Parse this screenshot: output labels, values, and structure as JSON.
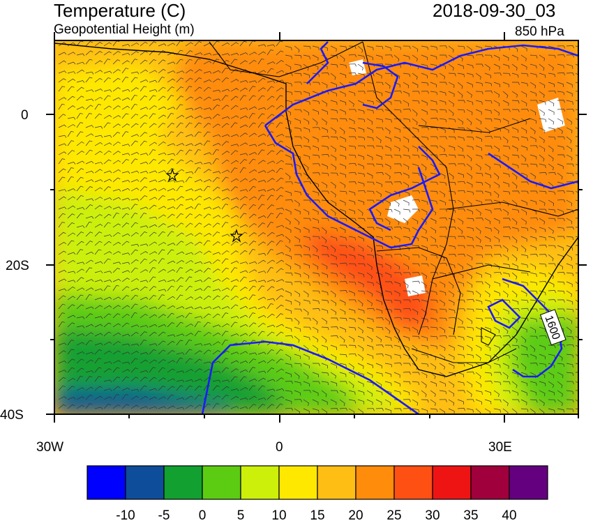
{
  "header": {
    "title": "Temperature (C)",
    "subtitle": "Geopotential Height (m)",
    "datetime": "2018-09-30_03",
    "level": "850 hPa"
  },
  "axes": {
    "y_ticks": [
      "0",
      "20S",
      "40S"
    ],
    "x_ticks": [
      "30W",
      "0",
      "30E"
    ]
  },
  "contour": {
    "label": "1600",
    "color": "#1a1aff"
  },
  "colorbar": {
    "labels": [
      "-10",
      "-5",
      "0",
      "5",
      "10",
      "15",
      "20",
      "25",
      "30",
      "35",
      "40"
    ],
    "colors": [
      "#0000ff",
      "#0e4d9a",
      "#12a030",
      "#5ccc12",
      "#ccf00a",
      "#ffe800",
      "#ffbe14",
      "#ff8c0a",
      "#ff5014",
      "#ee1414",
      "#a0003c",
      "#640080"
    ]
  },
  "markers": [
    "star",
    "star"
  ]
}
